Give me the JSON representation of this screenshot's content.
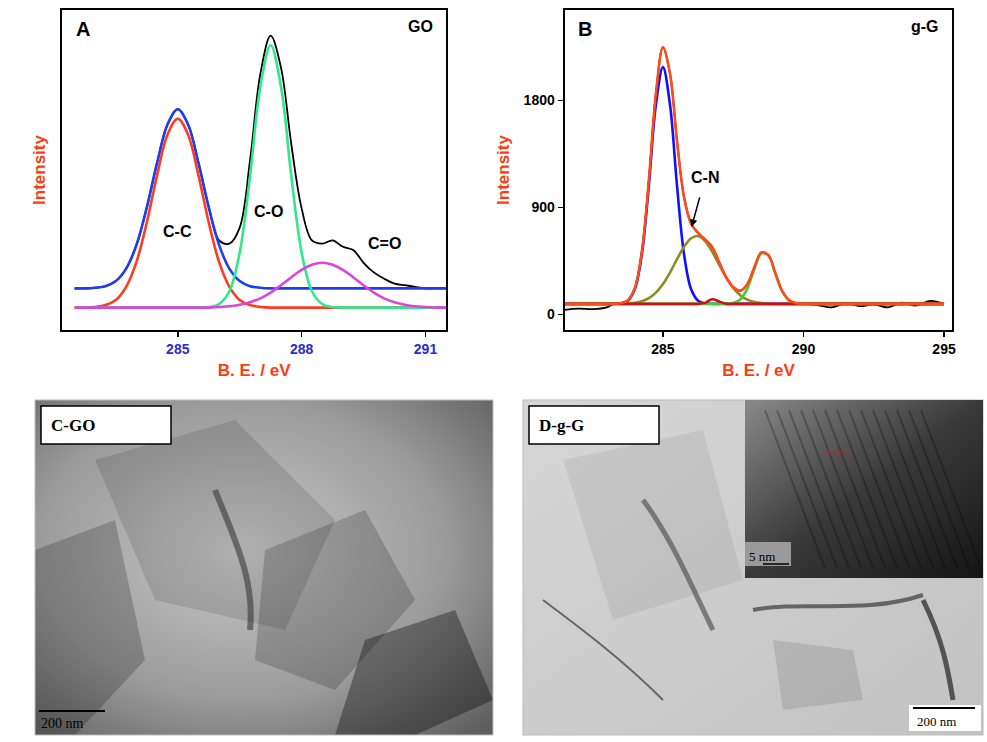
{
  "chart_data": [
    {
      "type": "line",
      "panel_label": "A",
      "title": "GO",
      "x_label": "B. E. / eV",
      "y_label": "Intensity",
      "xlim": [
        282.2,
        291.5
      ],
      "xticks": [
        285,
        288,
        291
      ],
      "ylim": [
        0,
        100
      ],
      "tick_labels": "x",
      "grid": false,
      "x": [
        282.5,
        282.75,
        283,
        283.25,
        283.5,
        283.75,
        284,
        284.25,
        284.5,
        284.75,
        285,
        285.25,
        285.5,
        285.75,
        286,
        286.25,
        286.5,
        286.75,
        287,
        287.25,
        287.5,
        287.75,
        288,
        288.25,
        288.5,
        288.75,
        289,
        289.25,
        289.5,
        289.75,
        290,
        290.25,
        290.5,
        290.75,
        291,
        291.25,
        291.5
      ],
      "series": [
        {
          "color": "#000000",
          "values": [
            13,
            13,
            13.2,
            13.7,
            15.3,
            19.2,
            26.6,
            38.3,
            52.3,
            64.2,
            69,
            64.2,
            52.3,
            38.5,
            28,
            27,
            32,
            53,
            80,
            92,
            82,
            58,
            38,
            28,
            27,
            28,
            26,
            25,
            21,
            18,
            16,
            14.5,
            14,
            13.5,
            13,
            13,
            13
          ]
        },
        {
          "color": "#1f3df0",
          "values": [
            13,
            13,
            13.2,
            13.7,
            15.3,
            19.2,
            26.6,
            38.3,
            52.3,
            64.2,
            69,
            64.2,
            52.3,
            38.3,
            26.6,
            19.2,
            15.3,
            13.7,
            13.2,
            13,
            13,
            13,
            13,
            13,
            13,
            13,
            13,
            13,
            13,
            13,
            13,
            13,
            13,
            13,
            13,
            13,
            13
          ]
        },
        {
          "color": "#ff3b1f",
          "values": [
            7,
            7,
            7.2,
            7.8,
            9.4,
            13.5,
            21.3,
            33.6,
            48.4,
            61.0,
            66,
            61.0,
            48.4,
            33.6,
            21.3,
            13.5,
            9.4,
            7.8,
            7.2,
            7,
            7,
            7,
            7,
            7,
            7,
            7,
            7,
            7,
            7,
            7,
            7,
            7,
            7,
            7,
            7,
            7,
            7
          ]
        },
        {
          "color": "#2ee88a",
          "values": [
            7,
            7,
            7,
            7,
            7,
            7,
            7,
            7,
            7,
            7,
            7,
            7,
            7,
            7.2,
            8.1,
            12.1,
            24.2,
            48,
            76,
            89,
            76,
            48,
            24.2,
            12.1,
            8.1,
            7.2,
            7,
            7,
            7,
            7,
            7,
            7,
            7,
            7,
            7,
            7,
            7
          ]
        },
        {
          "color": "#dd44dd",
          "values": [
            7,
            7,
            7,
            7,
            7,
            7,
            7,
            7,
            7,
            7,
            7,
            7,
            7,
            7,
            7.2,
            7.4,
            7.9,
            8.7,
            9.9,
            11.7,
            14,
            16.5,
            18.8,
            20.4,
            21,
            20.4,
            18.8,
            16.5,
            14,
            11.7,
            9.9,
            8.7,
            7.9,
            7.4,
            7.2,
            7,
            7
          ]
        }
      ],
      "annotations": [
        {
          "text": "C-C",
          "x": 285,
          "y": 30.8
        },
        {
          "text": "C-O",
          "x": 287.2,
          "y": 37
        },
        {
          "text": "C=O",
          "x": 290.0,
          "y": 27
        }
      ]
    },
    {
      "type": "line",
      "panel_label": "B",
      "title": "g-G",
      "x_label": "B. E. / eV",
      "y_label": "Intensity",
      "xlim": [
        281.5,
        295.3
      ],
      "xticks": [
        285,
        290,
        295
      ],
      "ylim": [
        -130,
        2560
      ],
      "yticks": [
        0,
        900,
        1800
      ],
      "grid": false,
      "x": [
        281.5,
        282,
        282.5,
        283,
        283.25,
        283.5,
        283.75,
        284,
        284.25,
        284.5,
        284.75,
        285,
        285.25,
        285.5,
        285.75,
        286,
        286.25,
        286.5,
        286.75,
        287,
        287.25,
        287.5,
        287.75,
        288,
        288.25,
        288.5,
        288.75,
        289,
        289.25,
        289.5,
        289.75,
        290,
        290.5,
        291,
        291.5,
        292,
        292.5,
        293,
        293.5,
        294,
        294.5,
        295
      ],
      "series": [
        {
          "color": "#000000",
          "values": [
            40,
            50,
            45,
            60,
            90.3,
            95,
            119,
            223,
            530,
            1133,
            1858,
            2246,
            2027,
            1460,
            987,
            765,
            686,
            630,
            568,
            440,
            313,
            231,
            200,
            254,
            396,
            521,
            499,
            345,
            194,
            118,
            95,
            90,
            80,
            60,
            95,
            70,
            85,
            60,
            100,
            75,
            115,
            90
          ]
        },
        {
          "color": "#1010ff",
          "values": [
            90,
            90,
            90,
            90,
            90,
            94,
            116,
            214,
            508,
            1085,
            1764,
            2080,
            1764,
            1085,
            508,
            214,
            116,
            94,
            90,
            90,
            90,
            90,
            90,
            90,
            90,
            90,
            90,
            90,
            90,
            90,
            90,
            90,
            90,
            90,
            90,
            90,
            90,
            90,
            90,
            90,
            90,
            90
          ]
        },
        {
          "color": "#8c8c22",
          "values": [
            90,
            90,
            90,
            90,
            90.3,
            91,
            93.4,
            99,
            112,
            138,
            184,
            256,
            353,
            465,
            569,
            641,
            660,
            618,
            530,
            419,
            312,
            224,
            163,
            126,
            106,
            96,
            92,
            90,
            90,
            90,
            90,
            90,
            90,
            90,
            90,
            90,
            90,
            90,
            90,
            90,
            90,
            90
          ]
        },
        {
          "color": "#44cc33",
          "values": [
            90,
            90,
            90,
            90,
            90,
            90,
            90,
            90,
            90,
            90,
            90,
            90,
            90,
            90,
            90,
            90,
            90,
            90,
            90,
            90,
            91,
            97,
            127,
            218,
            380,
            515,
            497,
            345,
            194,
            118,
            95,
            90,
            90,
            90,
            90,
            90,
            90,
            90,
            90,
            90,
            90,
            90
          ]
        },
        {
          "color": "#cc1111",
          "values": [
            90,
            90,
            90,
            90,
            90,
            90,
            90,
            90,
            90,
            90,
            90,
            90,
            90,
            90,
            90,
            90,
            90,
            98,
            128,
            110,
            90,
            90,
            90,
            90,
            90,
            90,
            90,
            90,
            90,
            90,
            90,
            90,
            90,
            90,
            90,
            90,
            90,
            90,
            90,
            90,
            90,
            90
          ]
        },
        {
          "color": "#ff4a1a",
          "values": [
            90,
            90,
            90,
            90,
            90.3,
            95,
            119,
            223,
            530,
            1133,
            1858,
            2246,
            2027,
            1460,
            987,
            765,
            686,
            630,
            568,
            440,
            313,
            231,
            200,
            254,
            396,
            521,
            499,
            345,
            194,
            118,
            95,
            90,
            90,
            90,
            90,
            90,
            90,
            90,
            90,
            90,
            90,
            90
          ]
        }
      ],
      "annotations": [
        {
          "text": "C-N",
          "x": 286.0,
          "y": 720,
          "text_x": 286.5,
          "text_y": 1150
        }
      ]
    }
  ],
  "micrographs": [
    {
      "label": "C-GO",
      "scale_bar": "200 nm"
    },
    {
      "label": "D-g-G",
      "scale_bar": "200 nm",
      "inset": {
        "scale_bar": "5 nm"
      }
    }
  ]
}
